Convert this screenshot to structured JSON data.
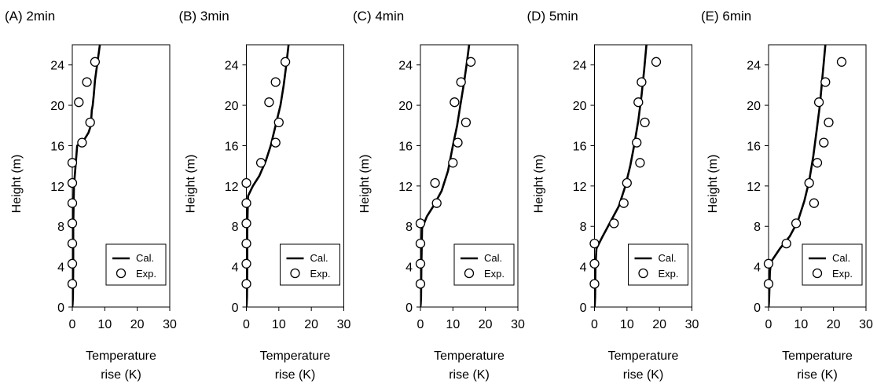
{
  "chart_data": [
    {
      "type": "line",
      "title": "(A) 2min",
      "xlabel": [
        "Temperature",
        "rise (K)"
      ],
      "ylabel": "Height (m)",
      "xlim": [
        0,
        30
      ],
      "ylim": [
        0,
        26
      ],
      "xticks": [
        0,
        10,
        20,
        30
      ],
      "yticks": [
        0,
        4,
        8,
        12,
        16,
        20,
        24
      ],
      "grid": false,
      "legend_position": "bottom-right",
      "series": [
        {
          "name": "Cal.",
          "kind": "line",
          "x": [
            0.0,
            0.1,
            0.2,
            0.3,
            0.3,
            0.5,
            1.5,
            3.5,
            5.0,
            5.7,
            6.0,
            6.3,
            6.6,
            7.0,
            8.5
          ],
          "y": [
            0.0,
            0.3,
            1.0,
            4.0,
            8.0,
            12.0,
            16.0,
            16.5,
            17.3,
            18.0,
            19.5,
            20.0,
            21.0,
            22.5,
            26.0
          ]
        },
        {
          "name": "Exp.",
          "kind": "scatter",
          "x": [
            0,
            0,
            0,
            0,
            0,
            0,
            0,
            3,
            5.5,
            2,
            4.5,
            7
          ],
          "y": [
            2.3,
            4.3,
            6.3,
            8.3,
            10.3,
            12.3,
            14.3,
            16.3,
            18.3,
            20.3,
            22.3,
            24.3
          ]
        }
      ]
    },
    {
      "type": "line",
      "title": "(B) 3min",
      "xlabel": [
        "Temperature",
        "rise (K)"
      ],
      "ylabel": "Height (m)",
      "xlim": [
        0,
        30
      ],
      "ylim": [
        0,
        26
      ],
      "xticks": [
        0,
        10,
        20,
        30
      ],
      "yticks": [
        0,
        4,
        8,
        12,
        16,
        20,
        24
      ],
      "grid": false,
      "legend_position": "bottom-right",
      "series": [
        {
          "name": "Cal.",
          "kind": "line",
          "x": [
            0.0,
            0.1,
            0.2,
            0.3,
            0.3,
            0.5,
            2.0,
            4.0,
            6.0,
            7.5,
            9.0,
            10.5,
            11.5,
            12.3,
            13.0
          ],
          "y": [
            0.0,
            0.3,
            1.0,
            4.0,
            8.0,
            11.0,
            12.0,
            13.0,
            14.5,
            16.0,
            18.0,
            20.0,
            22.0,
            24.0,
            26.0
          ]
        },
        {
          "name": "Exp.",
          "kind": "scatter",
          "x": [
            0,
            0,
            0,
            0,
            0,
            0,
            4.5,
            9,
            10,
            7,
            9,
            12
          ],
          "y": [
            2.3,
            4.3,
            6.3,
            8.3,
            10.3,
            12.3,
            14.3,
            16.3,
            18.3,
            20.3,
            22.3,
            24.3
          ]
        }
      ]
    },
    {
      "type": "line",
      "title": "(C) 4min",
      "xlabel": [
        "Temperature",
        "rise (K)"
      ],
      "ylabel": "Height (m)",
      "xlim": [
        0,
        30
      ],
      "ylim": [
        0,
        26
      ],
      "xticks": [
        0,
        10,
        20,
        30
      ],
      "yticks": [
        0,
        4,
        8,
        12,
        16,
        20,
        24
      ],
      "grid": false,
      "legend_position": "bottom-right",
      "series": [
        {
          "name": "Cal.",
          "kind": "line",
          "x": [
            0.0,
            0.1,
            0.2,
            0.3,
            0.5,
            2.0,
            4.0,
            6.5,
            8.5,
            10.0,
            11.3,
            12.3,
            13.3,
            14.2,
            15.0
          ],
          "y": [
            0.0,
            0.3,
            1.0,
            4.0,
            7.8,
            9.0,
            10.0,
            11.5,
            13.5,
            16.0,
            18.0,
            20.0,
            22.0,
            24.0,
            26.0
          ]
        },
        {
          "name": "Exp.",
          "kind": "scatter",
          "x": [
            0,
            0,
            0,
            0,
            5,
            4.5,
            10,
            11.5,
            14,
            10.5,
            12.5,
            15.5
          ],
          "y": [
            2.3,
            4.3,
            6.3,
            8.3,
            10.3,
            12.3,
            14.3,
            16.3,
            18.3,
            20.3,
            22.3,
            24.3
          ]
        }
      ]
    },
    {
      "type": "line",
      "title": "(D) 5min",
      "xlabel": [
        "Temperature",
        "rise (K)"
      ],
      "ylabel": "Height (m)",
      "xlim": [
        0,
        30
      ],
      "ylim": [
        0,
        26
      ],
      "xticks": [
        0,
        10,
        20,
        30
      ],
      "yticks": [
        0,
        4,
        8,
        12,
        16,
        20,
        24
      ],
      "grid": false,
      "legend_position": "bottom-right",
      "series": [
        {
          "name": "Cal.",
          "kind": "line",
          "x": [
            0.0,
            0.1,
            0.2,
            0.3,
            0.6,
            2.5,
            5.0,
            7.5,
            9.5,
            11.0,
            12.2,
            13.5,
            14.5,
            15.3,
            16.0
          ],
          "y": [
            0.0,
            0.3,
            1.0,
            4.0,
            5.8,
            7.0,
            8.5,
            10.0,
            12.0,
            14.0,
            16.0,
            18.5,
            21.0,
            23.5,
            26.0
          ]
        },
        {
          "name": "Exp.",
          "kind": "scatter",
          "x": [
            0,
            0,
            0,
            6,
            9,
            10,
            14,
            13,
            15.5,
            13.5,
            14.5,
            19
          ],
          "y": [
            2.3,
            4.3,
            6.3,
            8.3,
            10.3,
            12.3,
            14.3,
            16.3,
            18.3,
            20.3,
            22.3,
            24.3
          ]
        }
      ]
    },
    {
      "type": "line",
      "title": "(E) 6min",
      "xlabel": [
        "Temperature",
        "rise (K)"
      ],
      "ylabel": "Height (m)",
      "xlim": [
        0,
        30
      ],
      "ylim": [
        0,
        26
      ],
      "xticks": [
        0,
        10,
        20,
        30
      ],
      "yticks": [
        0,
        4,
        8,
        12,
        16,
        20,
        24
      ],
      "grid": false,
      "legend_position": "bottom-right",
      "series": [
        {
          "name": "Cal.",
          "kind": "line",
          "x": [
            0.0,
            0.1,
            0.2,
            0.4,
            0.8,
            3.5,
            6.5,
            9.0,
            11.0,
            12.5,
            13.8,
            14.8,
            15.8,
            16.5,
            17.5
          ],
          "y": [
            0.0,
            0.3,
            1.0,
            3.5,
            4.5,
            5.8,
            7.0,
            8.5,
            10.5,
            12.5,
            15.0,
            17.5,
            20.0,
            22.5,
            26.0
          ]
        },
        {
          "name": "Exp.",
          "kind": "scatter",
          "x": [
            0,
            0,
            5.5,
            8.5,
            14,
            12.5,
            15,
            17,
            18.5,
            15.5,
            17.5,
            22.5
          ],
          "y": [
            2.3,
            4.3,
            6.3,
            8.3,
            10.3,
            12.3,
            14.3,
            16.3,
            18.3,
            20.3,
            22.3,
            24.3
          ]
        }
      ]
    }
  ]
}
